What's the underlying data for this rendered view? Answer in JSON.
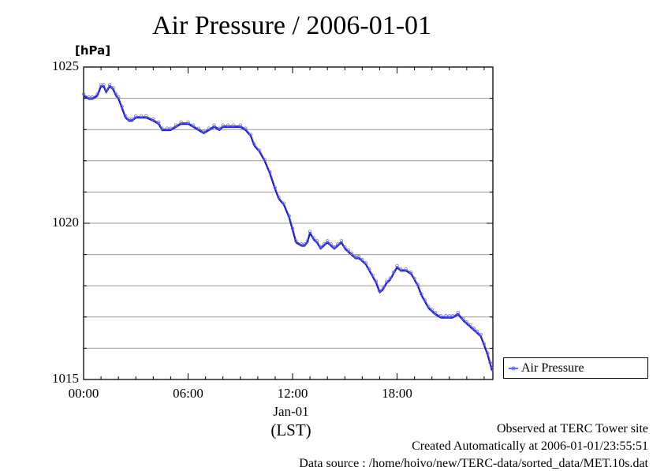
{
  "chart_data": {
    "type": "line",
    "title": "Air Pressure / 2006-01-01",
    "ylabel": "[hPa]",
    "xlabel": "(LST)",
    "date_label": "Jan-01",
    "ylim": [
      1015,
      1025
    ],
    "xlim_hours": [
      0,
      23.5
    ],
    "y_ticks": [
      1015,
      1020,
      1025
    ],
    "y_minor_step": 1,
    "x_ticks": [
      {
        "hour": 0,
        "label": "00:00"
      },
      {
        "hour": 6,
        "label": "06:00"
      },
      {
        "hour": 12,
        "label": "12:00"
      },
      {
        "hour": 18,
        "label": "18:00"
      }
    ],
    "grid": true,
    "legend_position": "bottom-right, outside plot",
    "series": [
      {
        "name": "Air Pressure",
        "color": "#3333ff",
        "marker_color": "#6a6aff",
        "x_hours": [
          0.0,
          0.3,
          0.5,
          0.8,
          1.0,
          1.15,
          1.3,
          1.5,
          1.7,
          1.85,
          2.0,
          2.2,
          2.4,
          2.6,
          2.8,
          3.0,
          3.3,
          3.6,
          4.0,
          4.3,
          4.5,
          4.8,
          5.0,
          5.3,
          5.6,
          6.0,
          6.3,
          6.6,
          6.9,
          7.2,
          7.5,
          7.8,
          8.0,
          8.3,
          8.6,
          9.0,
          9.3,
          9.6,
          9.8,
          10.1,
          10.4,
          10.7,
          11.0,
          11.2,
          11.5,
          11.8,
          12.0,
          12.2,
          12.5,
          12.7,
          12.85,
          13.0,
          13.2,
          13.4,
          13.6,
          13.8,
          14.0,
          14.2,
          14.4,
          14.6,
          14.8,
          15.0,
          15.2,
          15.4,
          15.6,
          15.8,
          16.0,
          16.2,
          16.4,
          16.6,
          16.8,
          17.0,
          17.2,
          17.4,
          17.6,
          17.8,
          18.0,
          18.2,
          18.5,
          18.8,
          19.0,
          19.2,
          19.4,
          19.6,
          19.8,
          20.0,
          20.2,
          20.5,
          20.8,
          21.0,
          21.2,
          21.5,
          21.8,
          22.0,
          22.2,
          22.4,
          22.6,
          22.8,
          23.0,
          23.2,
          23.35,
          23.45
        ],
        "values": [
          1024.1,
          1024.0,
          1024.0,
          1024.1,
          1024.4,
          1024.4,
          1024.2,
          1024.4,
          1024.3,
          1024.1,
          1024.0,
          1023.7,
          1023.4,
          1023.3,
          1023.3,
          1023.4,
          1023.4,
          1023.4,
          1023.3,
          1023.2,
          1023.0,
          1023.0,
          1023.0,
          1023.1,
          1023.2,
          1023.2,
          1023.1,
          1023.0,
          1022.9,
          1023.0,
          1023.1,
          1023.0,
          1023.1,
          1023.1,
          1023.1,
          1023.1,
          1023.0,
          1022.8,
          1022.5,
          1022.3,
          1022.0,
          1021.6,
          1021.1,
          1020.8,
          1020.6,
          1020.2,
          1019.8,
          1019.4,
          1019.3,
          1019.3,
          1019.4,
          1019.7,
          1019.5,
          1019.4,
          1019.2,
          1019.3,
          1019.4,
          1019.3,
          1019.2,
          1019.3,
          1019.4,
          1019.2,
          1019.1,
          1019.0,
          1018.9,
          1018.9,
          1018.8,
          1018.7,
          1018.5,
          1018.3,
          1018.1,
          1017.8,
          1017.9,
          1018.1,
          1018.2,
          1018.4,
          1018.6,
          1018.5,
          1018.5,
          1018.4,
          1018.2,
          1018.0,
          1017.7,
          1017.5,
          1017.3,
          1017.2,
          1017.1,
          1017.0,
          1017.0,
          1017.0,
          1017.0,
          1017.1,
          1016.9,
          1016.8,
          1016.7,
          1016.6,
          1016.5,
          1016.4,
          1016.1,
          1015.8,
          1015.5,
          1015.3
        ]
      }
    ]
  },
  "footer": {
    "site": "Observed at TERC Tower site",
    "created": "Created Automatically at 2006-01-01/23:55:51",
    "source": "Data source : /home/hoivo/new/TERC-data/sorted_data/MET.10s.dat"
  }
}
